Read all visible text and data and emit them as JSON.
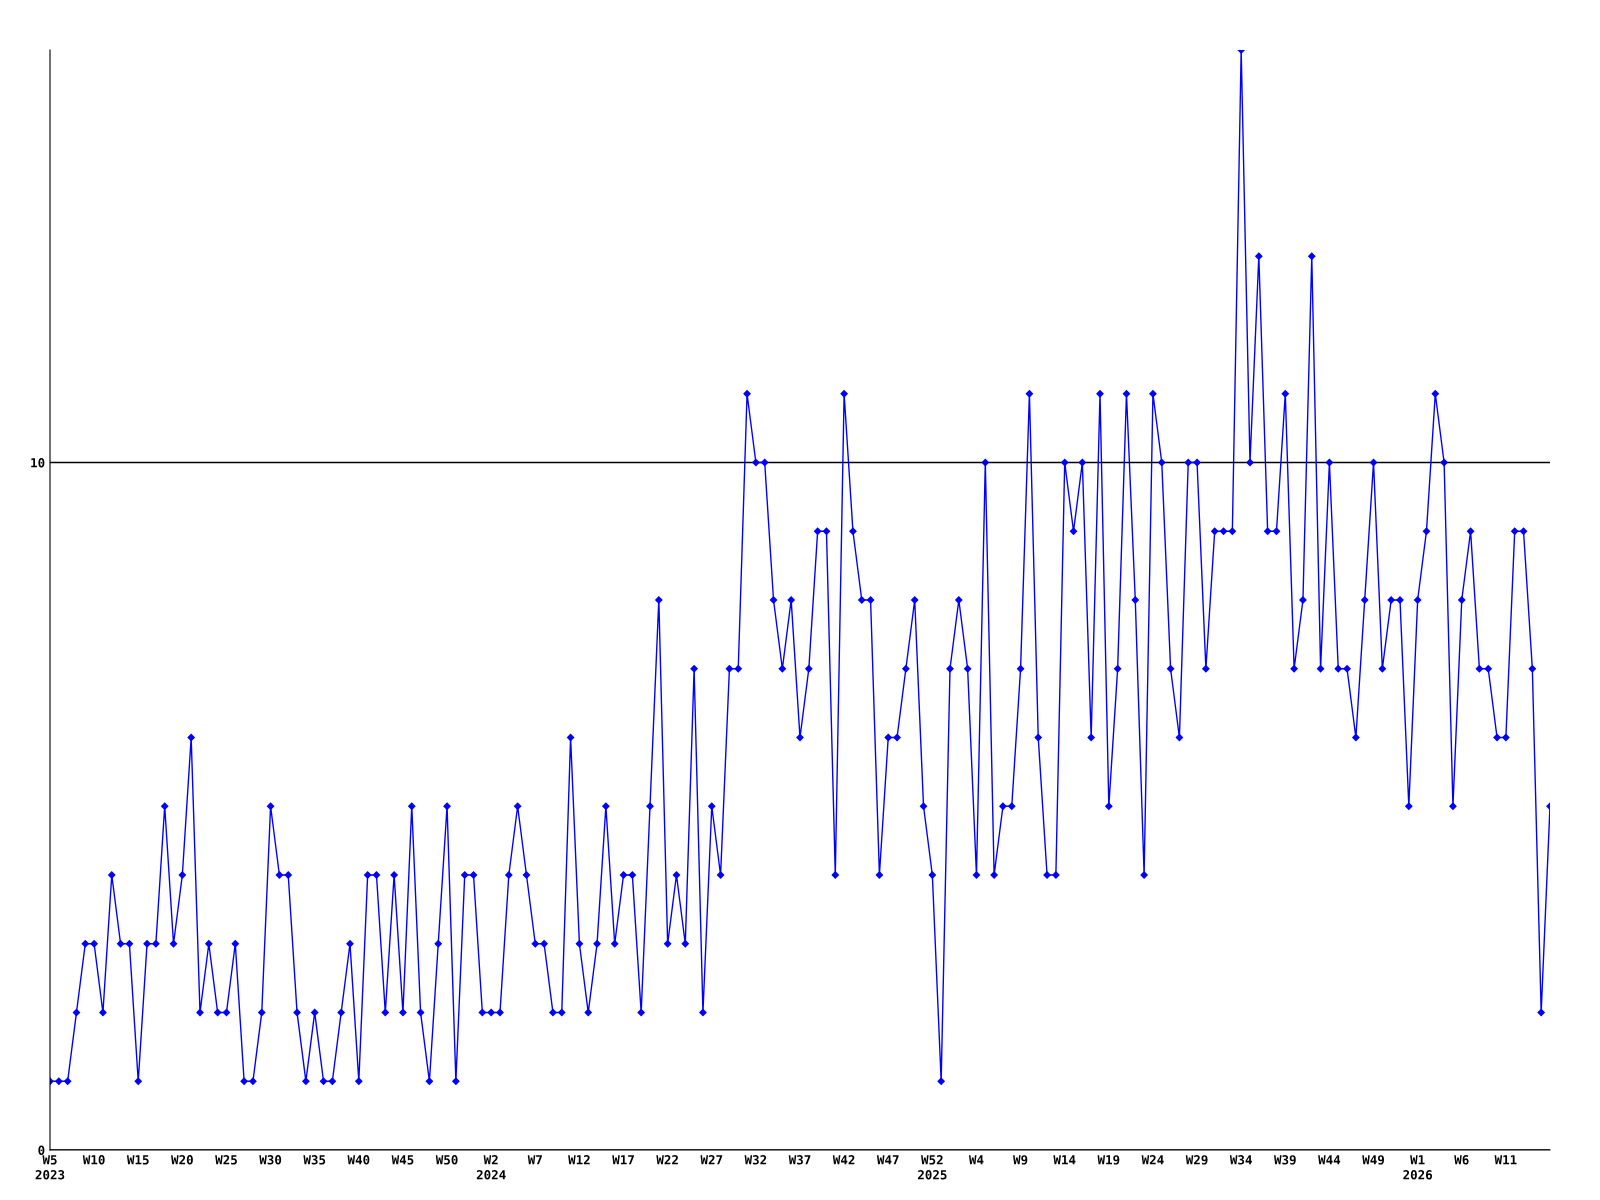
{
  "chart_data": {
    "type": "line",
    "categories": [
      "W5\n2023",
      null,
      null,
      null,
      null,
      "W10",
      null,
      null,
      null,
      null,
      "W15",
      null,
      null,
      null,
      null,
      "W20",
      null,
      null,
      null,
      null,
      "W25",
      null,
      null,
      null,
      null,
      "W30",
      null,
      null,
      null,
      null,
      "W35",
      null,
      null,
      null,
      null,
      "W40",
      null,
      null,
      null,
      null,
      "W45",
      null,
      null,
      null,
      null,
      "W50",
      null,
      null,
      null,
      null,
      "W2\n2024",
      null,
      null,
      null,
      null,
      "W7",
      null,
      null,
      null,
      null,
      "W12",
      null,
      null,
      null,
      null,
      "W17",
      null,
      null,
      null,
      null,
      "W22",
      null,
      null,
      null,
      null,
      "W27",
      null,
      null,
      null,
      null,
      "W32",
      null,
      null,
      null,
      null,
      "W37",
      null,
      null,
      null,
      null,
      "W42",
      null,
      null,
      null,
      null,
      "W47",
      null,
      null,
      null,
      null,
      "W52\n2025",
      null,
      null,
      null,
      null,
      "W4",
      null,
      null,
      null,
      null,
      "W9",
      null,
      null,
      null,
      null,
      "W14",
      null,
      null,
      null,
      null,
      "W19",
      null,
      null,
      null,
      null,
      "W24",
      null,
      null,
      null,
      null,
      "W29",
      null,
      null,
      null,
      null,
      "W34",
      null,
      null,
      null,
      null,
      "W39",
      null,
      null,
      null,
      null,
      "W44",
      null,
      null,
      null,
      null,
      "W49",
      null,
      null,
      null,
      null,
      "W1\n2026",
      null,
      null,
      null,
      null,
      "W6",
      null,
      null,
      null,
      null,
      "W11",
      null,
      null,
      null,
      null,
      null
    ],
    "series": [
      {
        "color": "#0000ff",
        "values": [
          1,
          1,
          1,
          2,
          3,
          3,
          2,
          4,
          3,
          3,
          1,
          3,
          3,
          5,
          3,
          4,
          6,
          2,
          3,
          2,
          2,
          3,
          1,
          1,
          2,
          5,
          4,
          4,
          2,
          1,
          2,
          1,
          1,
          2,
          3,
          1,
          4,
          4,
          2,
          4,
          2,
          5,
          2,
          1,
          3,
          5,
          1,
          4,
          4,
          2,
          2,
          2,
          4,
          5,
          4,
          3,
          3,
          2,
          2,
          6,
          3,
          2,
          3,
          5,
          3,
          4,
          4,
          2,
          5,
          8,
          3,
          4,
          3,
          7,
          2,
          5,
          4,
          7,
          7,
          11,
          10,
          10,
          8,
          7,
          8,
          6,
          7,
          9,
          9,
          4,
          11,
          9,
          8,
          8,
          4,
          6,
          6,
          7,
          8,
          5,
          4,
          1,
          7,
          8,
          7,
          4,
          10,
          4,
          5,
          5,
          7,
          11,
          6,
          4,
          4,
          10,
          9,
          10,
          6,
          11,
          5,
          7,
          11,
          8,
          4,
          11,
          10,
          7,
          6,
          10,
          10,
          7,
          9,
          9,
          9,
          16,
          10,
          13,
          9,
          9,
          11,
          7,
          8,
          13,
          7,
          10,
          7,
          7,
          6,
          8,
          10,
          7,
          8,
          8,
          5,
          8,
          9,
          11,
          10,
          5,
          8,
          9,
          7,
          7,
          6,
          6,
          9,
          9,
          7,
          2,
          5
        ]
      }
    ],
    "ylim": [
      0,
      16
    ],
    "yticks": [
      0,
      10
    ],
    "grid": "y",
    "marker": "diamond",
    "line_style": "solid"
  }
}
